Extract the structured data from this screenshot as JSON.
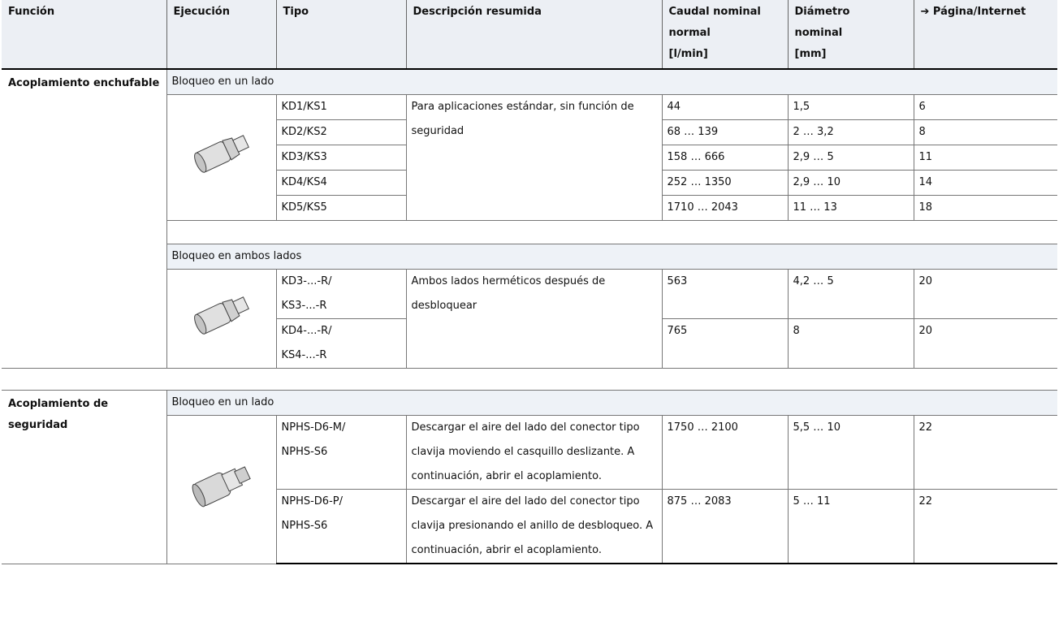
{
  "header": {
    "columns": [
      [
        "Función"
      ],
      [
        "Ejecución"
      ],
      [
        "Tipo"
      ],
      [
        "Descripción resumida"
      ],
      [
        "Caudal nominal",
        "normal",
        "[l/min]"
      ],
      [
        "Diámetro",
        "nominal",
        "[mm]"
      ],
      [
        "➔ Página/Internet"
      ]
    ]
  },
  "sections": [
    {
      "function": "Acoplamiento enchufable",
      "groups": [
        {
          "title": "Bloqueo en un lado",
          "description": "Para aplicaciones estándar, sin función de seguridad",
          "rows": [
            {
              "type": [
                "KD1/KS1"
              ],
              "flow": "44",
              "diameter": "1,5",
              "page": 6
            },
            {
              "type": [
                "KD2/KS2"
              ],
              "flow": "68 … 139",
              "diameter": "2 … 3,2",
              "page": 8
            },
            {
              "type": [
                "KD3/KS3"
              ],
              "flow": "158 … 666",
              "diameter": "2,9 … 5",
              "page": 11
            },
            {
              "type": [
                "KD4/KS4"
              ],
              "flow": "252 … 1350",
              "diameter": "2,9 … 10",
              "page": 14
            },
            {
              "type": [
                "KD5/KS5"
              ],
              "flow": "1710 … 2043",
              "diameter": "11 … 13",
              "page": 18
            }
          ]
        },
        {
          "title": "Bloqueo en ambos lados",
          "description": "Ambos lados herméticos después de desbloquear",
          "rows": [
            {
              "type": [
                "KD3-...-R/",
                "KS3-...-R"
              ],
              "flow": "563",
              "diameter": "4,2 … 5",
              "page": 20
            },
            {
              "type": [
                "KD4-...-R/",
                "KS4-...-R"
              ],
              "flow": "765",
              "diameter": "8",
              "page": 20
            }
          ]
        }
      ]
    },
    {
      "function": "Acoplamiento de seguridad",
      "groups": [
        {
          "title": "Bloqueo en un lado",
          "rows": [
            {
              "type": [
                "NPHS-D6-M/",
                "NPHS-S6"
              ],
              "description": "Descargar el aire del lado del conector tipo clavija moviendo el casquillo deslizante. A continuación, abrir el acoplamiento.",
              "flow": "1750 … 2100",
              "diameter": "5,5 … 10",
              "page": 22
            },
            {
              "type": [
                "NPHS-D6-P/",
                "NPHS-S6"
              ],
              "description": "Descargar el aire del lado del conector tipo clavija presionando el anillo de desbloqueo. A continuación, abrir el acoplamiento.",
              "flow": "875 … 2083",
              "diameter": "5 … 11",
              "page": 22
            }
          ]
        }
      ]
    }
  ]
}
